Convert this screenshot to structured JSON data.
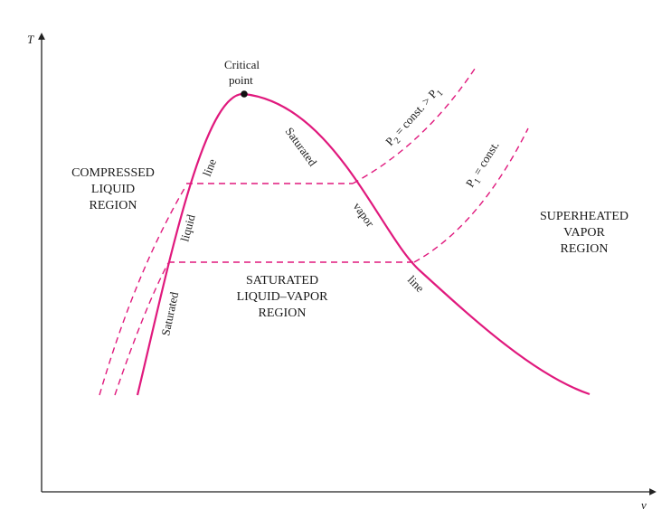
{
  "axes": {
    "y_label": "T",
    "x_label": "v"
  },
  "critical_point": {
    "line1": "Critical",
    "line2": "point"
  },
  "regions": {
    "compressed": [
      "COMPRESSED",
      "LIQUID",
      "REGION"
    ],
    "saturated_mixture": [
      "SATURATED",
      "LIQUID–VAPOR",
      "REGION"
    ],
    "superheated": [
      "SUPERHEATED",
      "VAPOR",
      "REGION"
    ]
  },
  "saturated_liquid_line": {
    "word1": "Saturated",
    "word2": "liquid",
    "word3": "line"
  },
  "saturated_vapor_line": {
    "word1": "Saturated",
    "word2": "vapor",
    "word3": "line"
  },
  "isobars": {
    "p2": {
      "symbol": "P",
      "sub": "2",
      "mid": " = const. > ",
      "symbol2": "P",
      "sub2": "1"
    },
    "p1": {
      "symbol": "P",
      "sub": "1",
      "mid": " = const."
    }
  },
  "colors": {
    "curve": "#e0197d",
    "axis": "#222222",
    "text": "#1a1a1a"
  }
}
